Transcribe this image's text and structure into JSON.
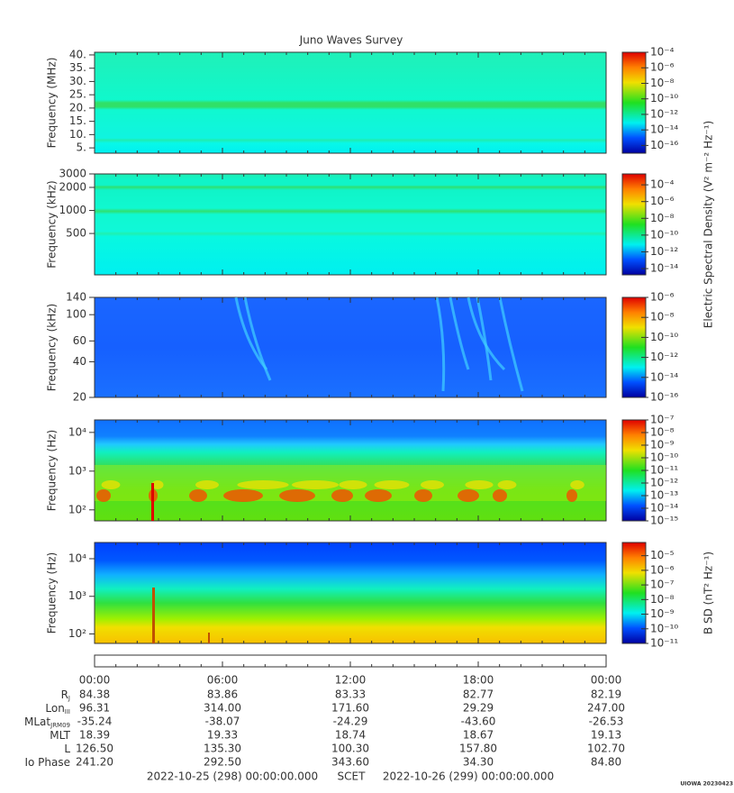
{
  "title": "Juno Waves Survey",
  "chart_data": [
    {
      "type": "spectrogram",
      "ylabel": "Frequency (MHz)",
      "yscale": "linear",
      "ylim": [
        3,
        41
      ],
      "yticks": [
        {
          "value": 40,
          "label": "40."
        },
        {
          "value": 35,
          "label": "35."
        },
        {
          "value": 30,
          "label": "30."
        },
        {
          "value": 25,
          "label": "25."
        },
        {
          "value": 20,
          "label": "20."
        },
        {
          "value": 15,
          "label": "15."
        },
        {
          "value": 10,
          "label": "10."
        },
        {
          "value": 5,
          "label": "5."
        }
      ],
      "colorbar": {
        "scale": "log",
        "lim": [
          1e-17,
          0.0001
        ],
        "ticks": [
          {
            "value": 0.0001,
            "label": "10⁻⁴"
          },
          {
            "value": 1e-06,
            "label": "10⁻⁶"
          },
          {
            "value": 1e-08,
            "label": "10⁻⁸"
          },
          {
            "value": 1e-10,
            "label": "10⁻¹⁰"
          },
          {
            "value": 1e-12,
            "label": "10⁻¹²"
          },
          {
            "value": 1e-14,
            "label": "10⁻¹⁴"
          },
          {
            "value": 1e-16,
            "label": "10⁻¹⁶"
          }
        ]
      }
    },
    {
      "type": "spectrogram",
      "ylabel": "Frequency (kHz)",
      "yscale": "log",
      "ylim": [
        144,
        3000
      ],
      "yticks": [
        3000,
        2000,
        1000,
        500
      ],
      "colorbar": {
        "scale": "log",
        "lim": [
          1.8e-15,
          0.002
        ],
        "label": "Electric Spectral Density (V² m⁻² Hz⁻¹)",
        "ticks": [
          {
            "value": 0.0001,
            "label": "10⁻⁴"
          },
          {
            "value": 1e-06,
            "label": "10⁻⁶"
          },
          {
            "value": 1e-08,
            "label": "10⁻⁸"
          },
          {
            "value": 1e-10,
            "label": "10⁻¹⁰"
          },
          {
            "value": 1e-12,
            "label": "10⁻¹²"
          },
          {
            "value": 1e-14,
            "label": "10⁻¹⁴"
          }
        ]
      }
    },
    {
      "type": "spectrogram",
      "ylabel": "Frequency (kHz)",
      "yscale": "log",
      "ylim": [
        20,
        140
      ],
      "yticks": [
        140,
        100,
        60,
        40,
        20
      ],
      "colorbar": {
        "scale": "log",
        "lim": [
          1e-16,
          1e-06
        ],
        "ticks": [
          {
            "value": 1e-06,
            "label": "10⁻⁶"
          },
          {
            "value": 1e-08,
            "label": "10⁻⁸"
          },
          {
            "value": 1e-10,
            "label": "10⁻¹⁰"
          },
          {
            "value": 1e-12,
            "label": "10⁻¹²"
          },
          {
            "value": 1e-14,
            "label": "10⁻¹⁴"
          },
          {
            "value": 1e-16,
            "label": "10⁻¹⁶"
          }
        ]
      }
    },
    {
      "type": "spectrogram",
      "ylabel": "Frequency (Hz)",
      "yscale": "log",
      "ylim": [
        52,
        21000
      ],
      "yticks": [
        {
          "value": 10000,
          "label": "10⁴"
        },
        {
          "value": 1000,
          "label": "10³"
        },
        {
          "value": 100,
          "label": "10²"
        }
      ],
      "colorbar": {
        "scale": "log",
        "lim": [
          1e-15,
          1e-07
        ],
        "ticks": [
          {
            "value": 1e-07,
            "label": "10⁻⁷"
          },
          {
            "value": 1e-08,
            "label": "10⁻⁸"
          },
          {
            "value": 1e-09,
            "label": "10⁻⁹"
          },
          {
            "value": 1e-10,
            "label": "10⁻¹⁰"
          },
          {
            "value": 1e-11,
            "label": "10⁻¹¹"
          },
          {
            "value": 1e-12,
            "label": "10⁻¹²"
          },
          {
            "value": 1e-13,
            "label": "10⁻¹³"
          },
          {
            "value": 1e-14,
            "label": "10⁻¹⁴"
          },
          {
            "value": 1e-15,
            "label": "10⁻¹⁵"
          }
        ]
      }
    },
    {
      "type": "spectrogram",
      "ylabel": "Frequency (Hz)",
      "yscale": "log",
      "ylim": [
        56,
        27000
      ],
      "yticks": [
        {
          "value": 10000,
          "label": "10⁴"
        },
        {
          "value": 1000,
          "label": "10³"
        },
        {
          "value": 100,
          "label": "10²"
        }
      ],
      "colorbar": {
        "scale": "log",
        "lim": [
          1e-11,
          8e-05
        ],
        "label": "B SD (nT² Hz⁻¹)",
        "ticks": [
          {
            "value": 1e-05,
            "label": "10⁻⁵"
          },
          {
            "value": 1e-06,
            "label": "10⁻⁶"
          },
          {
            "value": 1e-07,
            "label": "10⁻⁷"
          },
          {
            "value": 1e-08,
            "label": "10⁻⁸"
          },
          {
            "value": 1e-09,
            "label": "10⁻⁹"
          },
          {
            "value": 1e-10,
            "label": "10⁻¹⁰"
          },
          {
            "value": 1e-11,
            "label": "10⁻¹¹"
          }
        ]
      }
    }
  ],
  "time_axis": {
    "xlim": [
      0,
      24
    ],
    "xticks": [
      {
        "value": 0,
        "label": "00:00"
      },
      {
        "value": 6,
        "label": "06:00"
      },
      {
        "value": 12,
        "label": "12:00"
      },
      {
        "value": 18,
        "label": "18:00"
      },
      {
        "value": 24,
        "label": "00:00"
      }
    ]
  },
  "ephemeris": {
    "rows": [
      {
        "name": "R",
        "sub": "J",
        "values": [
          "84.38",
          "83.86",
          "83.33",
          "82.77",
          "82.19"
        ]
      },
      {
        "name": "Lon",
        "sub": "III",
        "values": [
          "96.31",
          "314.00",
          "171.60",
          "29.29",
          "247.00"
        ]
      },
      {
        "name": "MLat",
        "sub": "JRM09",
        "values": [
          "-35.24",
          "-38.07",
          "-24.29",
          "-43.60",
          "-26.53"
        ]
      },
      {
        "name": "MLT",
        "values": [
          "18.39",
          "19.33",
          "18.74",
          "18.67",
          "19.13"
        ]
      },
      {
        "name": "L",
        "values": [
          "126.50",
          "135.30",
          "100.30",
          "157.80",
          "102.70"
        ]
      },
      {
        "name": "Io Phase",
        "values": [
          "241.20",
          "292.50",
          "343.60",
          "34.30",
          "84.80"
        ]
      }
    ]
  },
  "footer": {
    "start": "2022-10-25 (298) 00:00:00.000",
    "scet": "SCET",
    "end": "2022-10-26 (299) 00:00:00.000",
    "stamp": "UIOWA 20230423"
  }
}
